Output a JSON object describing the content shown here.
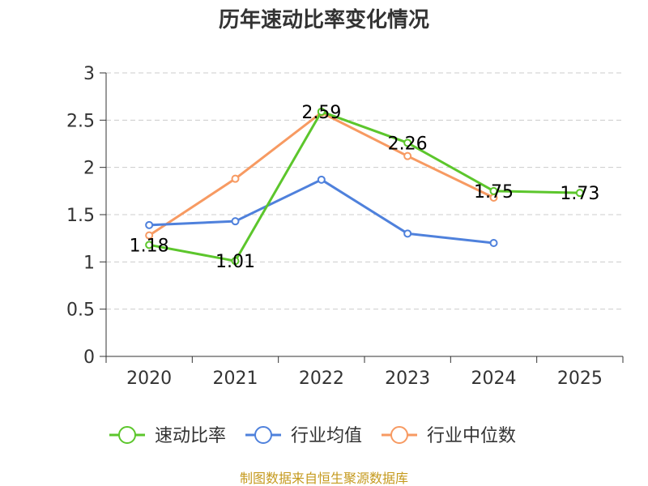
{
  "chart_data": {
    "type": "line",
    "title": "历年速动比率变化情况",
    "categories": [
      "2020",
      "2021",
      "2022",
      "2023",
      "2024",
      "2025"
    ],
    "ylim": [
      0,
      3
    ],
    "yticks": [
      0,
      0.5,
      1,
      1.5,
      2,
      2.5,
      3
    ],
    "grid": true,
    "legend_position": "bottom",
    "series": [
      {
        "name": "速动比率",
        "color": "#5cc62c",
        "values": [
          1.18,
          1.01,
          2.59,
          2.26,
          1.75,
          1.73
        ],
        "labels": [
          "1.18",
          "1.01",
          "2.59",
          "2.26",
          "1.75",
          "1.73"
        ]
      },
      {
        "name": "行业均值",
        "color": "#4f81dc",
        "values": [
          1.39,
          1.43,
          1.87,
          1.3,
          1.2,
          null
        ]
      },
      {
        "name": "行业中位数",
        "color": "#f79a62",
        "values": [
          1.28,
          1.88,
          2.58,
          2.12,
          1.68,
          null
        ]
      }
    ]
  },
  "source": "制图数据来自恒生聚源数据库"
}
